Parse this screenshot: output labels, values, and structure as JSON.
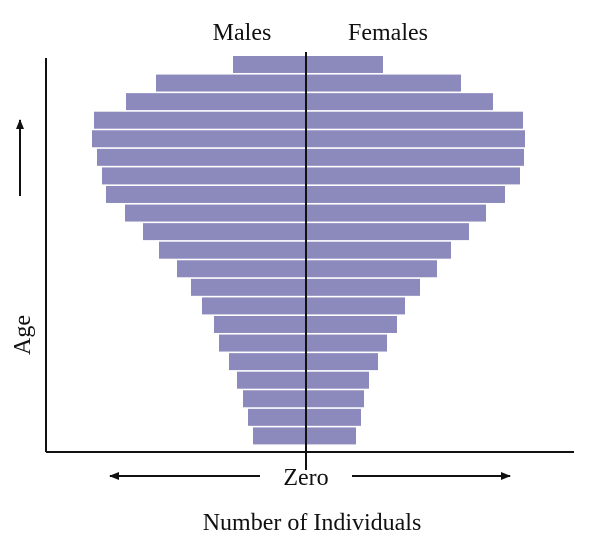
{
  "chart_data": {
    "type": "bar",
    "subtype": "population-pyramid",
    "title": "",
    "xlabel": "Number of Individuals",
    "ylabel": "Age",
    "center_label": "Zero",
    "legend": [
      "Males",
      "Females"
    ],
    "bar_color": "#8c89bd",
    "grid": false,
    "series": [
      {
        "name": "Males",
        "values": [
          73,
          150,
          180,
          212,
          214,
          209,
          204,
          200,
          181,
          163,
          147,
          129,
          115,
          104,
          92,
          87,
          77,
          69,
          63,
          58,
          53
        ]
      },
      {
        "name": "Females",
        "values": [
          77,
          155,
          187,
          217,
          219,
          218,
          214,
          199,
          180,
          163,
          145,
          131,
          114,
          99,
          91,
          81,
          72,
          63,
          58,
          55,
          50
        ]
      }
    ]
  }
}
